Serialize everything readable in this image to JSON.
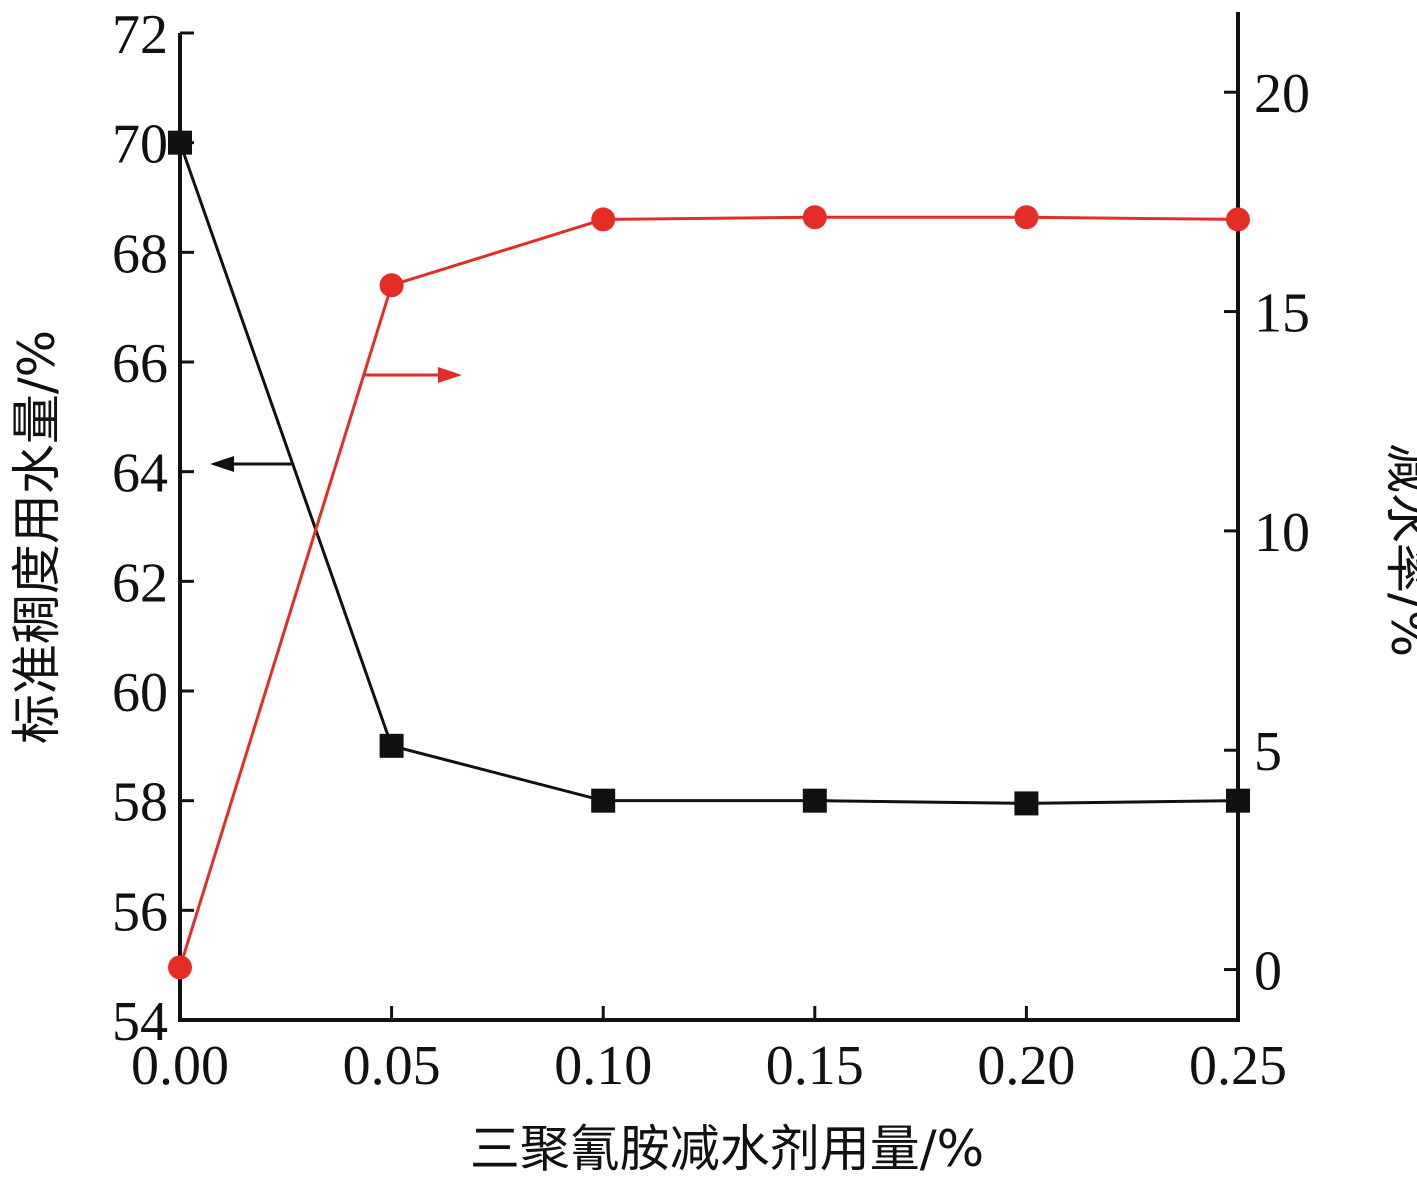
{
  "chart_data": {
    "type": "line",
    "xlabel": "三聚氰胺减水剂用量/%",
    "ylabel_left": "标准稠度用水量/%",
    "ylabel_right": "减水率/%",
    "x": [
      0.0,
      0.05,
      0.1,
      0.15,
      0.2,
      0.25
    ],
    "x_tick_labels": [
      "0.00",
      "0.05",
      "0.10",
      "0.15",
      "0.20",
      "0.25"
    ],
    "xlim": [
      0.0,
      0.25
    ],
    "ylim_left": [
      54,
      72
    ],
    "ylim_right": [
      -1.15,
      21.35
    ],
    "yticks_left": [
      "54",
      "56",
      "58",
      "60",
      "62",
      "64",
      "66",
      "68",
      "70",
      "72"
    ],
    "yticks_right": [
      "0",
      "5",
      "10",
      "15",
      "20"
    ],
    "grid": false,
    "series": [
      {
        "axis": "left",
        "marker": "square",
        "color": "#111111",
        "values": [
          70.0,
          59.0,
          58.0,
          58.0,
          57.95,
          58.0
        ]
      },
      {
        "axis": "right",
        "marker": "circle",
        "color": "#e52d27",
        "values": [
          0.05,
          15.6,
          17.1,
          17.15,
          17.15,
          17.1
        ]
      }
    ]
  }
}
